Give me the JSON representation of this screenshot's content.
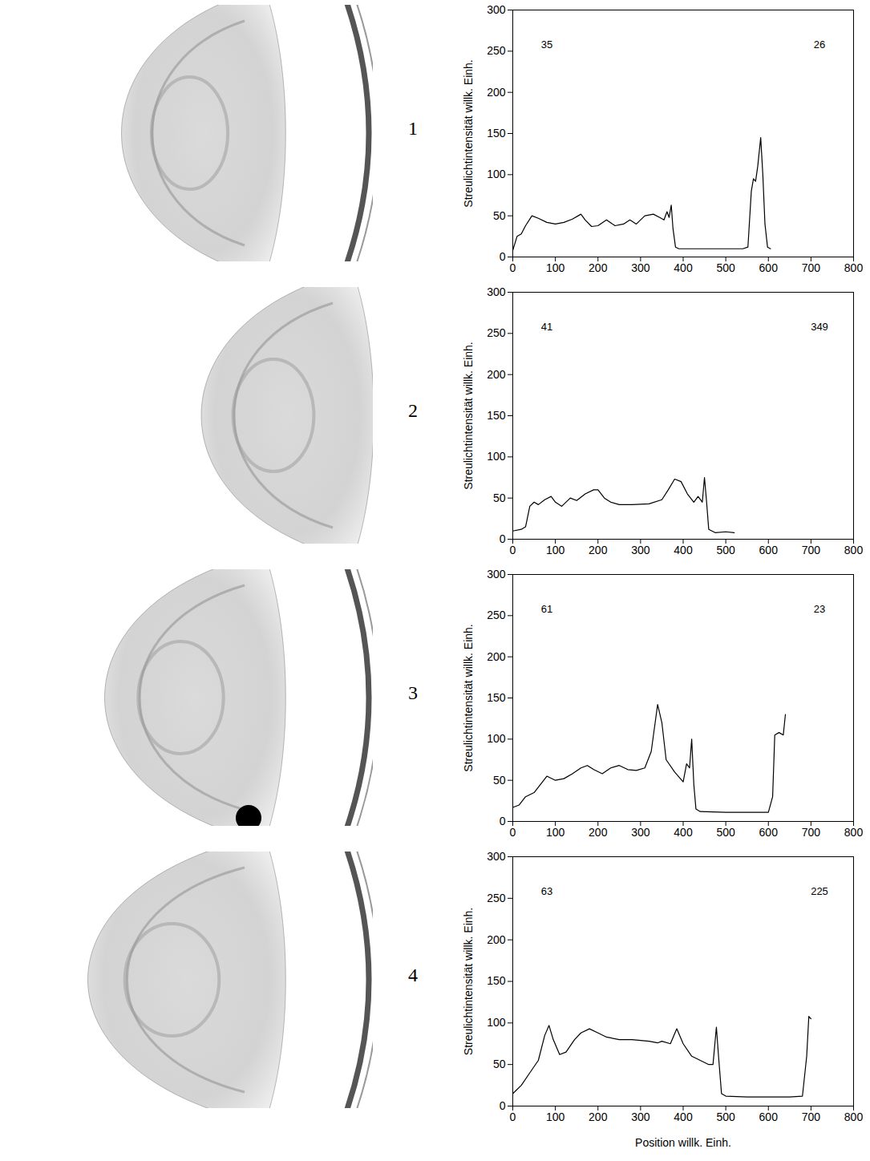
{
  "chart_data": [
    {
      "type": "line",
      "title": "1",
      "ylabel": "Streulichtintensität willk. Einh.",
      "xlim": [
        0,
        800
      ],
      "xticks": [
        0,
        100,
        200,
        300,
        400,
        500,
        600,
        700,
        800
      ],
      "ylim": [
        0,
        300
      ],
      "yticks": [
        0,
        50,
        100,
        150,
        200,
        250,
        300
      ],
      "grid": false,
      "color": "#000000",
      "annotations": [
        {
          "text": "35",
          "x": 80,
          "y": 258
        },
        {
          "text": "26",
          "x": 720,
          "y": 258
        }
      ],
      "x": [
        0,
        10,
        20,
        30,
        45,
        60,
        80,
        100,
        120,
        140,
        160,
        170,
        185,
        200,
        220,
        240,
        260,
        275,
        290,
        310,
        330,
        345,
        355,
        362,
        367,
        372,
        376,
        382,
        390,
        420,
        460,
        500,
        540,
        552,
        560,
        565,
        570,
        575,
        582,
        587,
        592,
        598,
        605
      ],
      "values": [
        8,
        25,
        28,
        38,
        50,
        47,
        42,
        40,
        42,
        46,
        52,
        45,
        37,
        38,
        45,
        38,
        40,
        45,
        40,
        50,
        52,
        48,
        45,
        55,
        48,
        63,
        35,
        12,
        10,
        10,
        10,
        10,
        10,
        12,
        80,
        95,
        92,
        110,
        145,
        100,
        40,
        12,
        10
      ]
    },
    {
      "type": "line",
      "title": "2",
      "ylabel": "Streulichtintensität willk. Einh.",
      "xlim": [
        0,
        800
      ],
      "xticks": [
        0,
        100,
        200,
        300,
        400,
        500,
        600,
        700,
        800
      ],
      "ylim": [
        0,
        300
      ],
      "yticks": [
        0,
        50,
        100,
        150,
        200,
        250,
        300
      ],
      "grid": false,
      "color": "#000000",
      "annotations": [
        {
          "text": "41",
          "x": 80,
          "y": 258
        },
        {
          "text": "349",
          "x": 720,
          "y": 258
        }
      ],
      "x": [
        0,
        20,
        30,
        40,
        50,
        60,
        75,
        90,
        100,
        115,
        135,
        150,
        170,
        190,
        200,
        215,
        230,
        250,
        280,
        320,
        350,
        365,
        380,
        395,
        410,
        425,
        435,
        445,
        450,
        455,
        460,
        475,
        500,
        520
      ],
      "values": [
        10,
        12,
        15,
        40,
        45,
        42,
        48,
        52,
        45,
        40,
        50,
        47,
        55,
        60,
        60,
        50,
        45,
        42,
        42,
        43,
        48,
        60,
        73,
        70,
        55,
        45,
        52,
        45,
        75,
        45,
        12,
        8,
        9,
        8
      ]
    },
    {
      "type": "line",
      "title": "3",
      "ylabel": "Streulichtintensität willk. Einh.",
      "xlim": [
        0,
        800
      ],
      "xticks": [
        0,
        100,
        200,
        300,
        400,
        500,
        600,
        700,
        800
      ],
      "ylim": [
        0,
        300
      ],
      "yticks": [
        0,
        50,
        100,
        150,
        200,
        250,
        300
      ],
      "grid": false,
      "color": "#000000",
      "annotations": [
        {
          "text": "61",
          "x": 80,
          "y": 258
        },
        {
          "text": "23",
          "x": 720,
          "y": 258
        }
      ],
      "x": [
        0,
        15,
        30,
        50,
        65,
        80,
        100,
        120,
        140,
        160,
        175,
        190,
        210,
        230,
        250,
        270,
        290,
        310,
        325,
        340,
        350,
        360,
        380,
        400,
        408,
        415,
        420,
        425,
        430,
        440,
        500,
        560,
        600,
        610,
        615,
        625,
        635,
        640
      ],
      "values": [
        17,
        20,
        30,
        35,
        45,
        55,
        50,
        52,
        58,
        65,
        68,
        63,
        58,
        65,
        68,
        63,
        62,
        65,
        85,
        142,
        120,
        75,
        60,
        48,
        70,
        65,
        100,
        45,
        15,
        12,
        11,
        11,
        11,
        30,
        105,
        108,
        105,
        130
      ]
    },
    {
      "type": "line",
      "title": "4",
      "ylabel": "Streulichtintensität willk. Einh.",
      "xlabel": "Position willk. Einh.",
      "xlim": [
        0,
        800
      ],
      "xticks": [
        0,
        100,
        200,
        300,
        400,
        500,
        600,
        700,
        800
      ],
      "ylim": [
        0,
        300
      ],
      "yticks": [
        0,
        50,
        100,
        150,
        200,
        250,
        300
      ],
      "grid": false,
      "color": "#000000",
      "annotations": [
        {
          "text": "63",
          "x": 80,
          "y": 258
        },
        {
          "text": "225",
          "x": 720,
          "y": 258
        }
      ],
      "x": [
        0,
        20,
        40,
        60,
        75,
        85,
        95,
        110,
        125,
        145,
        160,
        180,
        200,
        220,
        250,
        280,
        320,
        340,
        350,
        370,
        385,
        400,
        420,
        440,
        460,
        470,
        478,
        483,
        490,
        500,
        550,
        600,
        650,
        680,
        690,
        695,
        700
      ],
      "values": [
        15,
        25,
        40,
        55,
        85,
        97,
        80,
        62,
        65,
        80,
        88,
        93,
        88,
        83,
        80,
        80,
        78,
        76,
        78,
        75,
        93,
        75,
        60,
        55,
        50,
        50,
        95,
        60,
        15,
        12,
        11,
        11,
        11,
        12,
        60,
        108,
        105
      ]
    }
  ]
}
